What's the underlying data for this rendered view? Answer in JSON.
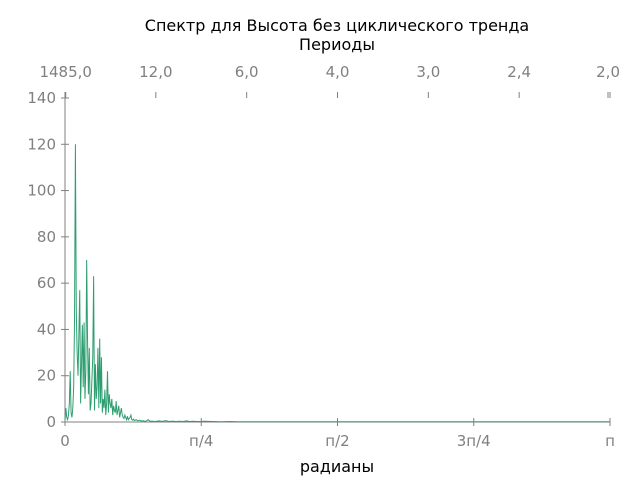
{
  "chart_data": {
    "type": "line",
    "title": "Спектр для Высота без циклического тренда",
    "top_axis_label": "Периоды",
    "xlabel": "радианы",
    "ylabel": "",
    "xlim": [
      0,
      3.14159
    ],
    "ylim": [
      0,
      140
    ],
    "grid": false,
    "legend": "none",
    "line_color": "#2e9e70",
    "axis_color": "#808080",
    "x_ticks": [
      {
        "value": 0,
        "label": "0"
      },
      {
        "value": 0.7854,
        "label": "п/4"
      },
      {
        "value": 1.5708,
        "label": "п/2"
      },
      {
        "value": 2.3562,
        "label": "3п/4"
      },
      {
        "value": 3.14159,
        "label": "п"
      }
    ],
    "y_ticks": [
      {
        "value": 0,
        "label": "0"
      },
      {
        "value": 20,
        "label": "20"
      },
      {
        "value": 40,
        "label": "40"
      },
      {
        "value": 60,
        "label": "60"
      },
      {
        "value": 80,
        "label": "80"
      },
      {
        "value": 100,
        "label": "100"
      },
      {
        "value": 120,
        "label": "120"
      },
      {
        "value": 140,
        "label": "140"
      }
    ],
    "top_ticks": [
      {
        "value": 0.00423,
        "label": "1485,0"
      },
      {
        "value": 0.5236,
        "label": "12,0"
      },
      {
        "value": 1.0472,
        "label": "6,0"
      },
      {
        "value": 1.5708,
        "label": "4,0"
      },
      {
        "value": 2.0944,
        "label": "3,0"
      },
      {
        "value": 2.618,
        "label": "2,4"
      },
      {
        "value": 3.14159,
        "label": "2,0"
      }
    ],
    "series": [
      {
        "x": [
          0.0,
          0.005,
          0.01,
          0.015,
          0.02,
          0.025,
          0.03,
          0.035,
          0.04,
          0.045,
          0.05,
          0.055,
          0.06,
          0.065,
          0.07,
          0.075,
          0.08,
          0.085,
          0.09,
          0.095,
          0.1,
          0.105,
          0.11,
          0.115,
          0.12,
          0.125,
          0.13,
          0.135,
          0.14,
          0.145,
          0.15,
          0.155,
          0.16,
          0.165,
          0.17,
          0.175,
          0.18,
          0.185,
          0.19,
          0.195,
          0.2,
          0.205,
          0.21,
          0.215,
          0.22,
          0.225,
          0.23,
          0.235,
          0.24,
          0.245,
          0.25,
          0.255,
          0.26,
          0.265,
          0.27,
          0.275,
          0.28,
          0.285,
          0.29,
          0.295,
          0.3,
          0.305,
          0.31,
          0.315,
          0.32,
          0.325,
          0.33,
          0.335,
          0.34,
          0.345,
          0.35,
          0.355,
          0.36,
          0.365,
          0.37,
          0.375,
          0.38,
          0.385,
          0.39,
          0.395,
          0.4,
          0.41,
          0.42,
          0.43,
          0.44,
          0.45,
          0.46,
          0.47,
          0.48,
          0.49,
          0.5,
          0.52,
          0.54,
          0.56,
          0.58,
          0.6,
          0.62,
          0.64,
          0.66,
          0.68,
          0.7,
          0.72,
          0.74,
          0.76,
          0.78,
          0.8,
          0.85,
          0.9,
          0.95,
          1.0,
          1.1,
          1.2,
          1.3,
          1.4,
          1.5,
          1.6,
          1.8,
          2.0,
          2.2,
          2.4,
          2.6,
          2.8,
          3.0,
          3.14
        ],
        "values": [
          0.5,
          6,
          2,
          1,
          3,
          8,
          22,
          4,
          2,
          6,
          15,
          45,
          120,
          48,
          30,
          20,
          38,
          57,
          8,
          25,
          42,
          15,
          43,
          10,
          22,
          70,
          35,
          12,
          32,
          5,
          8,
          18,
          28,
          63,
          5,
          25,
          10,
          15,
          32,
          6,
          36,
          8,
          28,
          4,
          10,
          6,
          14,
          3,
          8,
          22,
          4,
          12,
          8,
          6,
          10,
          3,
          7,
          5,
          4,
          9,
          3,
          5,
          7,
          2,
          4,
          6,
          3,
          2,
          1.5,
          3,
          2,
          1,
          2.5,
          1,
          1.5,
          2,
          3,
          1,
          0.8,
          1.2,
          0.6,
          1,
          0.5,
          0.8,
          0.4,
          0.6,
          0.3,
          0.5,
          1,
          0.3,
          0.4,
          0.2,
          0.5,
          0.3,
          0.6,
          0.2,
          0.4,
          0.2,
          0.3,
          0.2,
          0.5,
          0.2,
          0.3,
          0.2,
          0.2,
          0.3,
          0.2,
          0.1,
          0.2,
          0.1,
          0.1,
          0.1,
          0.1,
          0.1,
          0.1,
          0.1,
          0.1,
          0.1,
          0.1,
          0.1,
          0.1,
          0.1,
          0.1,
          0.1
        ]
      }
    ]
  }
}
